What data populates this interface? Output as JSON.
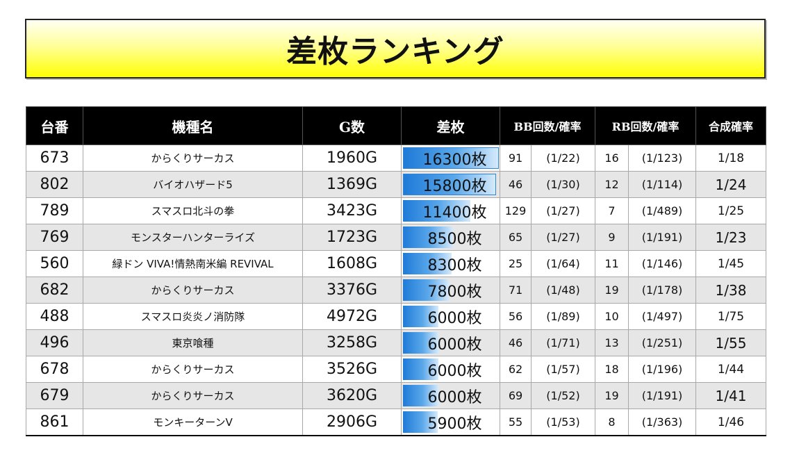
{
  "title": "差枚ランキング",
  "headers": {
    "unit": "台番",
    "machine": "機種名",
    "games": "G数",
    "diff": "差枚",
    "bb": "BB回数/確率",
    "rb": "RB回数/確率",
    "combined": "合成確率"
  },
  "max_diff": 16300,
  "rows": [
    {
      "unit": "673",
      "machine": "からくりサーカス",
      "games": "1960G",
      "diff": 16300,
      "diff_label": "16300枚",
      "bb": "91",
      "bb_rate": "(1/22)",
      "rb": "16",
      "rb_rate": "(1/123)",
      "combined": "1/18",
      "combined_big": false
    },
    {
      "unit": "802",
      "machine": "バイオハザード5",
      "games": "1369G",
      "diff": 15800,
      "diff_label": "15800枚",
      "bb": "46",
      "bb_rate": "(1/30)",
      "rb": "12",
      "rb_rate": "(1/114)",
      "combined": "1/24",
      "combined_big": true
    },
    {
      "unit": "789",
      "machine": "スマスロ北斗の拳",
      "games": "3423G",
      "diff": 11400,
      "diff_label": "11400枚",
      "bb": "129",
      "bb_rate": "(1/27)",
      "rb": "7",
      "rb_rate": "(1/489)",
      "combined": "1/25",
      "combined_big": false
    },
    {
      "unit": "769",
      "machine": "モンスターハンターライズ",
      "games": "1723G",
      "diff": 8500,
      "diff_label": "8500枚",
      "bb": "65",
      "bb_rate": "(1/27)",
      "rb": "9",
      "rb_rate": "(1/191)",
      "combined": "1/23",
      "combined_big": true
    },
    {
      "unit": "560",
      "machine": "緑ドン VIVA!情熱南米編 REVIVAL",
      "games": "1608G",
      "diff": 8300,
      "diff_label": "8300枚",
      "bb": "25",
      "bb_rate": "(1/64)",
      "rb": "11",
      "rb_rate": "(1/146)",
      "combined": "1/45",
      "combined_big": false
    },
    {
      "unit": "682",
      "machine": "からくりサーカス",
      "games": "3376G",
      "diff": 7800,
      "diff_label": "7800枚",
      "bb": "71",
      "bb_rate": "(1/48)",
      "rb": "19",
      "rb_rate": "(1/178)",
      "combined": "1/38",
      "combined_big": true
    },
    {
      "unit": "488",
      "machine": "スマスロ炎炎ノ消防隊",
      "games": "4972G",
      "diff": 6000,
      "diff_label": "6000枚",
      "bb": "56",
      "bb_rate": "(1/89)",
      "rb": "10",
      "rb_rate": "(1/497)",
      "combined": "1/75",
      "combined_big": false
    },
    {
      "unit": "496",
      "machine": "東京喰種",
      "games": "3258G",
      "diff": 6000,
      "diff_label": "6000枚",
      "bb": "46",
      "bb_rate": "(1/71)",
      "rb": "13",
      "rb_rate": "(1/251)",
      "combined": "1/55",
      "combined_big": true
    },
    {
      "unit": "678",
      "machine": "からくりサーカス",
      "games": "3526G",
      "diff": 6000,
      "diff_label": "6000枚",
      "bb": "62",
      "bb_rate": "(1/57)",
      "rb": "18",
      "rb_rate": "(1/196)",
      "combined": "1/44",
      "combined_big": false
    },
    {
      "unit": "679",
      "machine": "からくりサーカス",
      "games": "3620G",
      "diff": 6000,
      "diff_label": "6000枚",
      "bb": "69",
      "bb_rate": "(1/52)",
      "rb": "19",
      "rb_rate": "(1/191)",
      "combined": "1/41",
      "combined_big": true
    },
    {
      "unit": "861",
      "machine": "モンキーターンV",
      "games": "2906G",
      "diff": 5900,
      "diff_label": "5900枚",
      "bb": "55",
      "bb_rate": "(1/53)",
      "rb": "8",
      "rb_rate": "(1/363)",
      "combined": "1/46",
      "combined_big": false
    }
  ]
}
